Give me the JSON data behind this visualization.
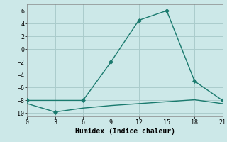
{
  "xlabel": "Humidex (Indice chaleur)",
  "background_color": "#cce8e8",
  "grid_color": "#aacccc",
  "line_color": "#1a7a6e",
  "line1_x": [
    0,
    6,
    9,
    12,
    15,
    18,
    21
  ],
  "line1_y": [
    -8,
    -8,
    -2,
    4.5,
    6,
    -5,
    -8
  ],
  "line1_markers": [
    0,
    1,
    2,
    3,
    4,
    5,
    6
  ],
  "line2_x": [
    0,
    3,
    6,
    9,
    12,
    15,
    18,
    21
  ],
  "line2_y": [
    -8.5,
    -9.8,
    -9.2,
    -8.8,
    -8.5,
    -8.2,
    -7.9,
    -8.5
  ],
  "line2_marker_idx": [
    1
  ],
  "xlim": [
    0,
    21
  ],
  "ylim": [
    -10.5,
    7
  ],
  "xticks": [
    0,
    3,
    6,
    9,
    12,
    15,
    18,
    21
  ],
  "yticks": [
    -10,
    -8,
    -6,
    -4,
    -2,
    0,
    2,
    4,
    6
  ],
  "marker_size": 3,
  "line_width": 1.0,
  "tick_fontsize": 6,
  "xlabel_fontsize": 7
}
